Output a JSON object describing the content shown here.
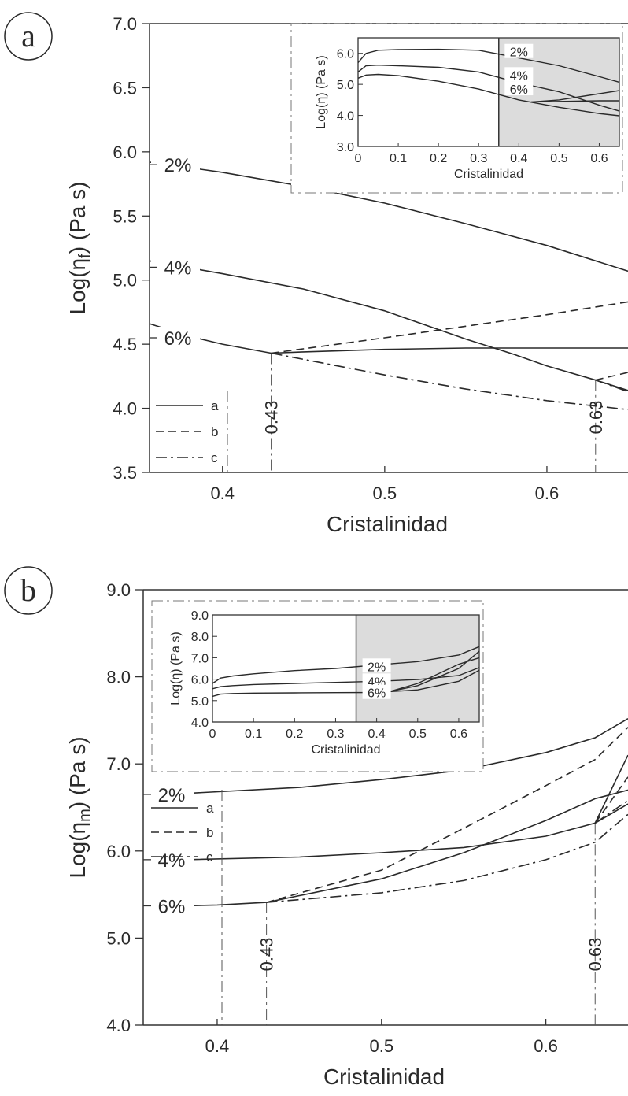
{
  "chart_data": [
    {
      "panel": "a",
      "type": "line",
      "xlabel": "Cristalinidad",
      "ylabel_pre": "Log(η",
      "ylabel_sub": "f",
      "ylabel_post": ") (Pa s)",
      "xlim": [
        0.355,
        0.65
      ],
      "ylim": [
        3.5,
        7.0
      ],
      "xticks": [
        0.4,
        0.5,
        0.6
      ],
      "xtick_labels": [
        "0.4",
        "0.5",
        "0.6"
      ],
      "yticks": [
        3.5,
        4.0,
        4.5,
        5.0,
        5.5,
        6.0,
        6.5,
        7.0
      ],
      "ytick_labels": [
        "3.5",
        "4.0",
        "4.5",
        "5.0",
        "5.5",
        "6.0",
        "6.5",
        "7.0"
      ],
      "legend": {
        "position": "bottom-left",
        "entries": [
          {
            "label": "a",
            "style": "solid"
          },
          {
            "label": "b",
            "style": "dashed"
          },
          {
            "label": "c",
            "style": "dashdot"
          }
        ]
      },
      "curve_labels": [
        {
          "text": "2%",
          "y": 5.9
        },
        {
          "text": "4%",
          "y": 5.1
        },
        {
          "text": "6%",
          "y": 4.55
        }
      ],
      "vmarkers": [
        {
          "x": 0.43,
          "label": "0.43"
        },
        {
          "x": 0.63,
          "label": "0.63"
        }
      ],
      "series": [
        {
          "name": "2%",
          "style": "solid",
          "x": [
            0.355,
            0.4,
            0.45,
            0.5,
            0.55,
            0.6,
            0.65
          ],
          "y": [
            5.92,
            5.84,
            5.73,
            5.6,
            5.44,
            5.27,
            5.07
          ]
        },
        {
          "name": "4%",
          "style": "solid",
          "x": [
            0.355,
            0.4,
            0.45,
            0.5,
            0.55,
            0.58,
            0.6,
            0.63,
            0.65
          ],
          "y": [
            5.15,
            5.05,
            4.93,
            4.76,
            4.54,
            4.42,
            4.33,
            4.22,
            4.14
          ]
        },
        {
          "name": "6%",
          "style": "solid",
          "x": [
            0.355,
            0.38,
            0.4,
            0.43
          ],
          "y": [
            4.66,
            4.56,
            4.5,
            4.43
          ]
        },
        {
          "name": "6%",
          "style": "solid",
          "x": [
            0.43,
            0.45,
            0.5,
            0.55,
            0.6,
            0.65
          ],
          "y": [
            4.43,
            4.44,
            4.46,
            4.47,
            4.47,
            4.47
          ]
        },
        {
          "name": "6%",
          "style": "dashed",
          "x": [
            0.43,
            0.5,
            0.55,
            0.6,
            0.65
          ],
          "y": [
            4.43,
            4.55,
            4.64,
            4.73,
            4.83
          ]
        },
        {
          "name": "6%",
          "style": "dashdot",
          "x": [
            0.43,
            0.5,
            0.55,
            0.6,
            0.65
          ],
          "y": [
            4.43,
            4.26,
            4.15,
            4.06,
            3.99
          ]
        },
        {
          "name": "4%",
          "style": "dashed",
          "x": [
            0.63,
            0.65
          ],
          "y": [
            4.22,
            4.28
          ]
        },
        {
          "name": "4%",
          "style": "dashdot",
          "x": [
            0.63,
            0.65
          ],
          "y": [
            4.22,
            4.13
          ]
        }
      ],
      "inset": {
        "xlabel": "Cristalinidad",
        "ylabel": "Log(η) (Pa s)",
        "xlim": [
          0,
          0.65
        ],
        "ylim": [
          3.0,
          6.5
        ],
        "xticks": [
          0,
          0.1,
          0.2,
          0.3,
          0.4,
          0.5,
          0.6
        ],
        "xtick_labels": [
          "0",
          "0.1",
          "0.2",
          "0.3",
          "0.4",
          "0.5",
          "0.6"
        ],
        "yticks": [
          3.0,
          4.0,
          5.0,
          6.0
        ],
        "ytick_labels": [
          "3.0",
          "4.0",
          "5.0",
          "6.0"
        ],
        "shaded_from": 0.35,
        "curve_labels": [
          {
            "text": "2%",
            "y": 6.05
          },
          {
            "text": "4%",
            "y": 5.3
          },
          {
            "text": "6%",
            "y": 4.85
          }
        ],
        "series": [
          {
            "name": "2%",
            "x": [
              0,
              0.02,
              0.05,
              0.1,
              0.2,
              0.3,
              0.4,
              0.5,
              0.6,
              0.65
            ],
            "y": [
              5.7,
              6.0,
              6.1,
              6.12,
              6.13,
              6.1,
              5.85,
              5.6,
              5.25,
              5.07
            ]
          },
          {
            "name": "4%",
            "x": [
              0,
              0.02,
              0.05,
              0.1,
              0.2,
              0.3,
              0.4,
              0.5,
              0.6,
              0.65
            ],
            "y": [
              5.4,
              5.6,
              5.62,
              5.6,
              5.55,
              5.4,
              5.05,
              4.76,
              4.33,
              4.14
            ]
          },
          {
            "name": "6%",
            "x": [
              0,
              0.02,
              0.05,
              0.1,
              0.2,
              0.3,
              0.4,
              0.5,
              0.6,
              0.65
            ],
            "y": [
              5.2,
              5.3,
              5.32,
              5.28,
              5.1,
              4.85,
              4.5,
              4.26,
              4.06,
              3.99
            ]
          },
          {
            "name": "6%",
            "x": [
              0.43,
              0.5,
              0.6,
              0.65
            ],
            "y": [
              4.43,
              4.5,
              4.7,
              4.8
            ]
          },
          {
            "name": "6%",
            "x": [
              0.43,
              0.5,
              0.6,
              0.65
            ],
            "y": [
              4.43,
              4.45,
              4.47,
              4.47
            ]
          }
        ]
      }
    },
    {
      "panel": "b",
      "type": "line",
      "xlabel": "Cristalinidad",
      "ylabel_pre": "Log(η",
      "ylabel_sub": "m",
      "ylabel_post": ") (Pa s)",
      "xlim": [
        0.355,
        0.65
      ],
      "ylim": [
        4.0,
        9.0
      ],
      "xticks": [
        0.4,
        0.5,
        0.6
      ],
      "xtick_labels": [
        "0.4",
        "0.5",
        "0.6"
      ],
      "yticks": [
        4.0,
        5.0,
        6.0,
        7.0,
        8.0,
        9.0
      ],
      "ytick_labels": [
        "4.0",
        "5.0",
        "6.0",
        "7.0",
        "8.0",
        "9.0"
      ],
      "legend": {
        "position": "bottom-left",
        "entries": [
          {
            "label": "a",
            "style": "solid"
          },
          {
            "label": "b",
            "style": "dashed"
          },
          {
            "label": "c",
            "style": "dashdot"
          }
        ]
      },
      "curve_labels": [
        {
          "text": "2%",
          "y": 6.65
        },
        {
          "text": "4%",
          "y": 5.9
        },
        {
          "text": "6%",
          "y": 5.37
        }
      ],
      "vmarkers": [
        {
          "x": 0.43,
          "label": "0.43"
        },
        {
          "x": 0.63,
          "label": "0.63"
        }
      ],
      "series": [
        {
          "name": "2%",
          "style": "solid",
          "x": [
            0.38,
            0.45,
            0.5,
            0.55,
            0.6,
            0.63,
            0.65
          ],
          "y": [
            6.66,
            6.73,
            6.82,
            6.93,
            7.13,
            7.3,
            7.52
          ]
        },
        {
          "name": "4%",
          "style": "solid",
          "x": [
            0.38,
            0.45,
            0.5,
            0.55,
            0.6,
            0.63,
            0.65
          ],
          "y": [
            5.9,
            5.93,
            5.98,
            6.04,
            6.17,
            6.32,
            6.54
          ]
        },
        {
          "name": "6%",
          "style": "solid",
          "x": [
            0.38,
            0.4,
            0.43
          ],
          "y": [
            5.37,
            5.38,
            5.41
          ]
        },
        {
          "name": "6%",
          "style": "solid",
          "x": [
            0.43,
            0.5,
            0.55,
            0.6,
            0.63,
            0.65
          ],
          "y": [
            5.41,
            5.68,
            5.98,
            6.35,
            6.6,
            6.7
          ]
        },
        {
          "name": "6%",
          "style": "dashed",
          "x": [
            0.43,
            0.5,
            0.55,
            0.6,
            0.63,
            0.65
          ],
          "y": [
            5.41,
            5.78,
            6.26,
            6.75,
            7.05,
            7.42
          ]
        },
        {
          "name": "6%",
          "style": "dashdot",
          "x": [
            0.43,
            0.5,
            0.55,
            0.6,
            0.63,
            0.65
          ],
          "y": [
            5.41,
            5.52,
            5.66,
            5.9,
            6.1,
            6.42
          ]
        },
        {
          "name": "4%",
          "style": "solid",
          "x": [
            0.63,
            0.65
          ],
          "y": [
            6.32,
            7.1
          ]
        },
        {
          "name": "4%",
          "style": "dashed",
          "x": [
            0.63,
            0.65
          ],
          "y": [
            6.32,
            6.85
          ]
        },
        {
          "name": "4%",
          "style": "dashdot",
          "x": [
            0.63,
            0.65
          ],
          "y": [
            6.32,
            6.58
          ]
        }
      ],
      "inset": {
        "xlabel": "Cristalinidad",
        "ylabel": "Log(η) (Pa s)",
        "xlim": [
          0,
          0.65
        ],
        "ylim": [
          4.0,
          9.0
        ],
        "xticks": [
          0,
          0.1,
          0.2,
          0.3,
          0.4,
          0.5,
          0.6
        ],
        "xtick_labels": [
          "0",
          "0.1",
          "0.2",
          "0.3",
          "0.4",
          "0.5",
          "0.6"
        ],
        "yticks": [
          4.0,
          5.0,
          6.0,
          7.0,
          8.0,
          9.0
        ],
        "ytick_labels": [
          "4.0",
          "5.0",
          "6.0",
          "7.0",
          "8.0",
          "9.0"
        ],
        "shaded_from": 0.35,
        "curve_labels": [
          {
            "text": "2%",
            "y": 6.6
          },
          {
            "text": "4%",
            "y": 5.9
          },
          {
            "text": "6%",
            "y": 5.37
          }
        ],
        "series": [
          {
            "name": "2%",
            "x": [
              0,
              0.02,
              0.05,
              0.1,
              0.2,
              0.3,
              0.4,
              0.5,
              0.6,
              0.65
            ],
            "y": [
              5.8,
              6.05,
              6.15,
              6.25,
              6.4,
              6.5,
              6.66,
              6.82,
              7.13,
              7.52
            ]
          },
          {
            "name": "4%",
            "x": [
              0,
              0.02,
              0.05,
              0.1,
              0.2,
              0.3,
              0.4,
              0.5,
              0.6,
              0.65
            ],
            "y": [
              5.55,
              5.65,
              5.7,
              5.75,
              5.8,
              5.85,
              5.9,
              5.98,
              6.17,
              6.54
            ]
          },
          {
            "name": "6%",
            "x": [
              0,
              0.02,
              0.05,
              0.1,
              0.2,
              0.3,
              0.4,
              0.5,
              0.6,
              0.65
            ],
            "y": [
              5.2,
              5.3,
              5.33,
              5.35,
              5.36,
              5.37,
              5.38,
              5.5,
              5.9,
              6.42
            ]
          },
          {
            "name": "6%",
            "x": [
              0.43,
              0.5,
              0.6,
              0.65
            ],
            "y": [
              5.41,
              5.7,
              6.5,
              7.3
            ]
          },
          {
            "name": "6%",
            "x": [
              0.43,
              0.5,
              0.6,
              0.65
            ],
            "y": [
              5.41,
              5.8,
              6.7,
              7.0
            ]
          }
        ]
      }
    }
  ]
}
